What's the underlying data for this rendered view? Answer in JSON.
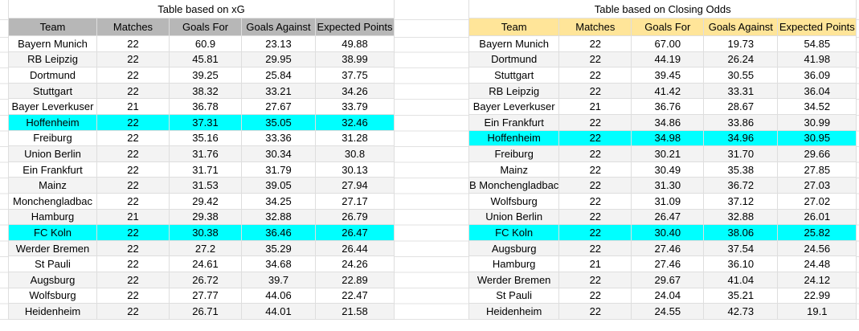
{
  "colors": {
    "background": "#ffffff",
    "gridline": "#e2e2e2",
    "band": "#f3f3f3",
    "highlight": "#00ffff",
    "xg_header_bg": "#b7b7b7",
    "odds_header_bg": "#ffe599",
    "text": "#000000"
  },
  "tables": [
    {
      "id": "xg",
      "title": "Table based on xG",
      "header_bg": "#b7b7b7",
      "columns": [
        "Team",
        "Matches",
        "Goals For",
        "Goals Against",
        "Expected Points"
      ],
      "rows": [
        {
          "cells": [
            "Bayern Munich",
            "22",
            "60.9",
            "23.13",
            "49.88"
          ],
          "hl": false
        },
        {
          "cells": [
            "RB Leipzig",
            "22",
            "45.81",
            "29.95",
            "38.99"
          ],
          "hl": false
        },
        {
          "cells": [
            "Dortmund",
            "22",
            "39.25",
            "25.84",
            "37.75"
          ],
          "hl": false
        },
        {
          "cells": [
            "Stuttgart",
            "22",
            "38.32",
            "33.21",
            "34.26"
          ],
          "hl": false
        },
        {
          "cells": [
            "Bayer Leverkuser",
            "21",
            "36.78",
            "27.67",
            "33.79"
          ],
          "hl": false
        },
        {
          "cells": [
            "Hoffenheim",
            "22",
            "37.31",
            "35.05",
            "32.46"
          ],
          "hl": true
        },
        {
          "cells": [
            "Freiburg",
            "22",
            "35.16",
            "33.36",
            "31.28"
          ],
          "hl": false
        },
        {
          "cells": [
            "Union Berlin",
            "22",
            "31.76",
            "30.34",
            "30.8"
          ],
          "hl": false
        },
        {
          "cells": [
            "Ein Frankfurt",
            "22",
            "31.71",
            "31.79",
            "30.13"
          ],
          "hl": false
        },
        {
          "cells": [
            "Mainz",
            "22",
            "31.53",
            "39.05",
            "27.94"
          ],
          "hl": false
        },
        {
          "cells": [
            "Monchengladbac",
            "22",
            "29.42",
            "34.25",
            "27.17"
          ],
          "hl": false
        },
        {
          "cells": [
            "Hamburg",
            "21",
            "29.38",
            "32.88",
            "26.79"
          ],
          "hl": false
        },
        {
          "cells": [
            "FC Koln",
            "22",
            "30.38",
            "36.46",
            "26.47"
          ],
          "hl": true
        },
        {
          "cells": [
            "Werder Bremen",
            "22",
            "27.2",
            "35.29",
            "26.44"
          ],
          "hl": false
        },
        {
          "cells": [
            "St Pauli",
            "22",
            "24.61",
            "34.68",
            "24.26"
          ],
          "hl": false
        },
        {
          "cells": [
            "Augsburg",
            "22",
            "26.72",
            "39.7",
            "22.89"
          ],
          "hl": false
        },
        {
          "cells": [
            "Wolfsburg",
            "22",
            "27.77",
            "44.06",
            "22.47"
          ],
          "hl": false
        },
        {
          "cells": [
            "Heidenheim",
            "22",
            "26.71",
            "44.01",
            "21.58"
          ],
          "hl": false
        }
      ]
    },
    {
      "id": "closing-odds",
      "title": "Table based on Closing Odds",
      "header_bg": "#ffe599",
      "columns": [
        "Team",
        "Matches",
        "Goals For",
        "Goals Against",
        "Expected Points"
      ],
      "rows": [
        {
          "cells": [
            "Bayern Munich",
            "22",
            "67.00",
            "19.73",
            "54.85"
          ],
          "hl": false
        },
        {
          "cells": [
            "Dortmund",
            "22",
            "44.19",
            "26.24",
            "41.98"
          ],
          "hl": false
        },
        {
          "cells": [
            "Stuttgart",
            "22",
            "39.45",
            "30.55",
            "36.09"
          ],
          "hl": false
        },
        {
          "cells": [
            "RB Leipzig",
            "22",
            "41.42",
            "33.31",
            "36.04"
          ],
          "hl": false
        },
        {
          "cells": [
            "Bayer Leverkuser",
            "21",
            "36.76",
            "28.67",
            "34.52"
          ],
          "hl": false
        },
        {
          "cells": [
            "Ein Frankfurt",
            "22",
            "34.86",
            "33.86",
            "30.99"
          ],
          "hl": false
        },
        {
          "cells": [
            "Hoffenheim",
            "22",
            "34.98",
            "34.96",
            "30.95"
          ],
          "hl": true
        },
        {
          "cells": [
            "Freiburg",
            "22",
            "30.21",
            "31.70",
            "29.66"
          ],
          "hl": false
        },
        {
          "cells": [
            "Mainz",
            "22",
            "30.49",
            "35.38",
            "27.85"
          ],
          "hl": false
        },
        {
          "cells": [
            "B Monchengladbac",
            "22",
            "31.30",
            "36.72",
            "27.03"
          ],
          "hl": false
        },
        {
          "cells": [
            "Wolfsburg",
            "22",
            "31.09",
            "37.12",
            "27.02"
          ],
          "hl": false
        },
        {
          "cells": [
            "Union Berlin",
            "22",
            "26.47",
            "32.88",
            "26.01"
          ],
          "hl": false
        },
        {
          "cells": [
            "FC Koln",
            "22",
            "30.40",
            "38.06",
            "25.82"
          ],
          "hl": true
        },
        {
          "cells": [
            "Augsburg",
            "22",
            "27.46",
            "37.54",
            "24.56"
          ],
          "hl": false
        },
        {
          "cells": [
            "Hamburg",
            "21",
            "27.46",
            "36.10",
            "24.48"
          ],
          "hl": false
        },
        {
          "cells": [
            "Werder Bremen",
            "22",
            "29.67",
            "41.04",
            "24.12"
          ],
          "hl": false
        },
        {
          "cells": [
            "St Pauli",
            "22",
            "24.04",
            "35.21",
            "22.99"
          ],
          "hl": false
        },
        {
          "cells": [
            "Heidenheim",
            "22",
            "24.55",
            "42.73",
            "19.1"
          ],
          "hl": false
        }
      ]
    }
  ]
}
